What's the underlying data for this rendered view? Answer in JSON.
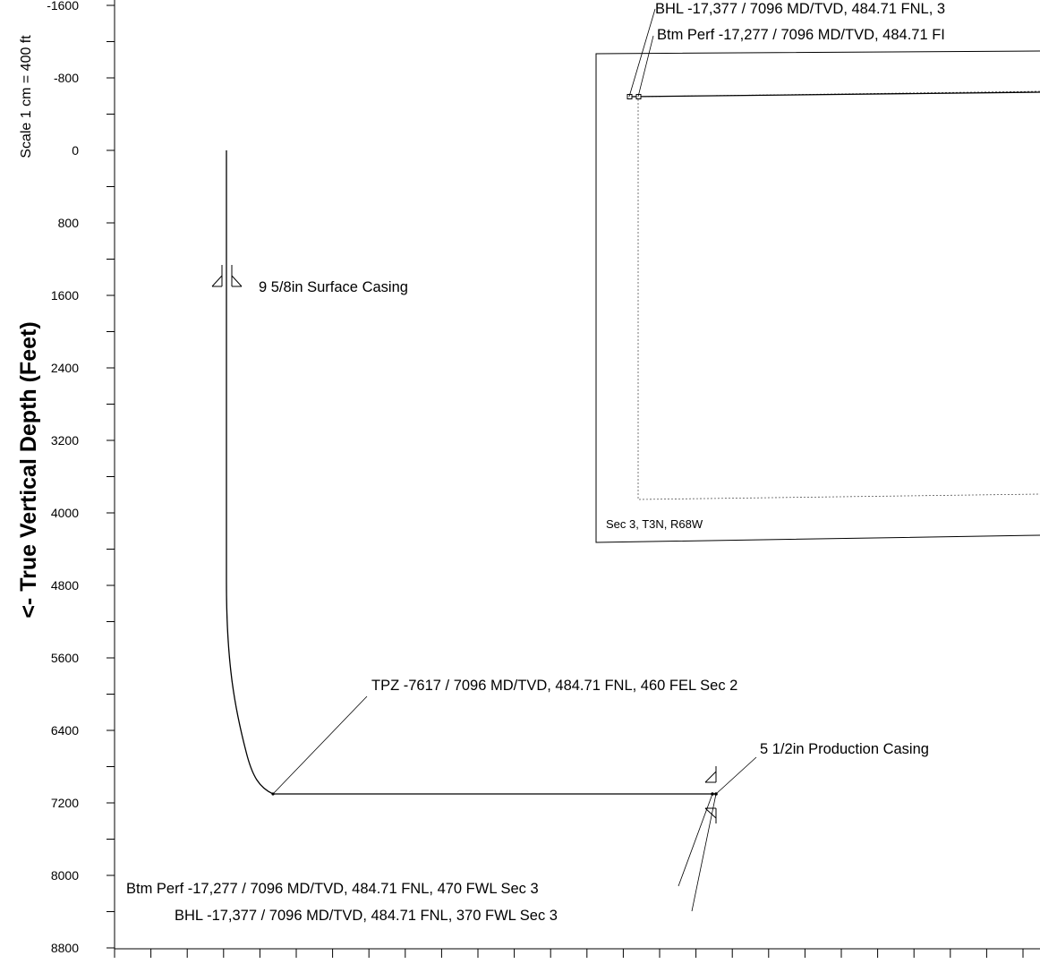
{
  "axis": {
    "ylabel": "<- True Vertical Depth (Feet)",
    "scale": "Scale 1 cm = 400 ft",
    "ticks": [
      {
        "value": -1600,
        "label": "-1600"
      },
      {
        "value": -800,
        "label": "-800"
      },
      {
        "value": 0,
        "label": "0"
      },
      {
        "value": 800,
        "label": "800"
      },
      {
        "value": 1600,
        "label": "1600"
      },
      {
        "value": 2400,
        "label": "2400"
      },
      {
        "value": 3200,
        "label": "3200"
      },
      {
        "value": 4000,
        "label": "4000"
      },
      {
        "value": 4800,
        "label": "4800"
      },
      {
        "value": 5600,
        "label": "5600"
      },
      {
        "value": 6400,
        "label": "6400"
      },
      {
        "value": 7200,
        "label": "7200"
      },
      {
        "value": 8000,
        "label": "8000"
      },
      {
        "value": 8800,
        "label": "8800"
      }
    ]
  },
  "annotations": {
    "surface_casing": "9 5/8in Surface Casing",
    "tpz": "TPZ -7617 / 7096 MD/TVD,  484.71 FNL, 460 FEL Sec 2",
    "production_casing": "5 1/2in Production Casing",
    "btm_perf": "Btm Perf -17,277 / 7096 MD/TVD,  484.71 FNL, 470 FWL Sec 3",
    "bhl": "BHL -17,377 / 7096 MD/TVD,  484.71 FNL, 370 FWL Sec 3"
  },
  "inset": {
    "bhl": "BHL -17,377 / 7096 MD/TVD,  484.71 FNL, 3",
    "btm_perf": "Btm Perf -17,277 / 7096 MD/TVD,  484.71 FI",
    "section_label": "Sec 3, T3N, R68W"
  }
}
